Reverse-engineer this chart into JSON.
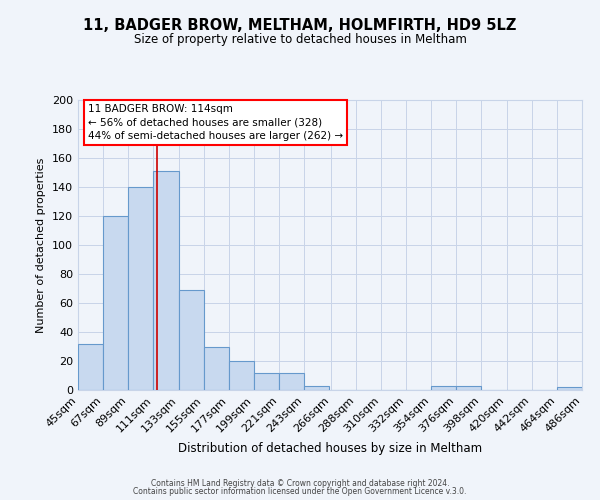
{
  "title": "11, BADGER BROW, MELTHAM, HOLMFIRTH, HD9 5LZ",
  "subtitle": "Size of property relative to detached houses in Meltham",
  "xlabel": "Distribution of detached houses by size in Meltham",
  "ylabel": "Number of detached properties",
  "bar_left_edges": [
    45,
    67,
    89,
    111,
    133,
    155,
    177,
    199,
    221,
    243,
    266,
    288,
    310,
    332,
    354,
    376,
    398,
    420,
    442,
    464
  ],
  "bar_widths": [
    22,
    22,
    22,
    22,
    22,
    22,
    22,
    22,
    22,
    22,
    22,
    22,
    22,
    22,
    22,
    22,
    22,
    22,
    22,
    22
  ],
  "bar_heights": [
    32,
    120,
    140,
    151,
    69,
    30,
    20,
    12,
    12,
    3,
    0,
    0,
    0,
    0,
    3,
    3,
    0,
    0,
    0,
    2
  ],
  "bar_color": "#c8d9ef",
  "bar_edge_color": "#6699cc",
  "bar_linewidth": 0.8,
  "vline_x": 114,
  "vline_color": "#cc0000",
  "vline_linewidth": 1.2,
  "ylim": [
    0,
    200
  ],
  "yticks": [
    0,
    20,
    40,
    60,
    80,
    100,
    120,
    140,
    160,
    180,
    200
  ],
  "xtick_labels": [
    "45sqm",
    "67sqm",
    "89sqm",
    "111sqm",
    "133sqm",
    "155sqm",
    "177sqm",
    "199sqm",
    "221sqm",
    "243sqm",
    "266sqm",
    "288sqm",
    "310sqm",
    "332sqm",
    "354sqm",
    "376sqm",
    "398sqm",
    "420sqm",
    "442sqm",
    "464sqm",
    "486sqm"
  ],
  "annotation_box_text": "11 BADGER BROW: 114sqm\n← 56% of detached houses are smaller (328)\n44% of semi-detached houses are larger (262) →",
  "bg_color": "#f0f4fa",
  "grid_color": "#c8d4e8",
  "footer_line1": "Contains HM Land Registry data © Crown copyright and database right 2024.",
  "footer_line2": "Contains public sector information licensed under the Open Government Licence v.3.0."
}
